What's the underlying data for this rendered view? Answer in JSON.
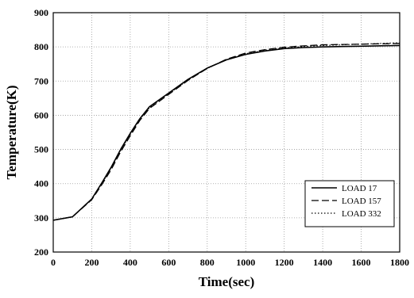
{
  "chart_data": {
    "type": "line",
    "title": "",
    "xlabel": "Time(sec)",
    "ylabel": "Temperature(K)",
    "xlim": [
      0,
      1800
    ],
    "ylim": [
      200,
      900
    ],
    "xticks": [
      0,
      200,
      400,
      600,
      800,
      1000,
      1200,
      1400,
      1600,
      1800
    ],
    "yticks": [
      200,
      300,
      400,
      500,
      600,
      700,
      800,
      900
    ],
    "grid": true,
    "legend_position": "bottom-right",
    "series": [
      {
        "name": "LOAD 17",
        "line_style": "solid",
        "points": [
          [
            0,
            293
          ],
          [
            100,
            303
          ],
          [
            200,
            355
          ],
          [
            250,
            400
          ],
          [
            300,
            447
          ],
          [
            350,
            500
          ],
          [
            400,
            547
          ],
          [
            450,
            590
          ],
          [
            500,
            625
          ],
          [
            600,
            665
          ],
          [
            700,
            705
          ],
          [
            800,
            738
          ],
          [
            900,
            762
          ],
          [
            1000,
            778
          ],
          [
            1100,
            788
          ],
          [
            1200,
            795
          ],
          [
            1300,
            798
          ],
          [
            1400,
            800
          ],
          [
            1500,
            801
          ],
          [
            1600,
            802
          ],
          [
            1700,
            803
          ],
          [
            1800,
            804
          ]
        ]
      },
      {
        "name": "LOAD 157",
        "line_style": "dashed",
        "points": [
          [
            0,
            293
          ],
          [
            100,
            303
          ],
          [
            200,
            353
          ],
          [
            250,
            395
          ],
          [
            300,
            440
          ],
          [
            350,
            493
          ],
          [
            400,
            540
          ],
          [
            450,
            585
          ],
          [
            500,
            620
          ],
          [
            600,
            661
          ],
          [
            700,
            702
          ],
          [
            800,
            737
          ],
          [
            900,
            764
          ],
          [
            1000,
            782
          ],
          [
            1100,
            792
          ],
          [
            1200,
            799
          ],
          [
            1300,
            803
          ],
          [
            1400,
            806
          ],
          [
            1500,
            807
          ],
          [
            1600,
            808
          ],
          [
            1700,
            809
          ],
          [
            1800,
            810
          ]
        ]
      },
      {
        "name": "LOAD 332",
        "line_style": "dotted",
        "points": [
          [
            0,
            293
          ],
          [
            100,
            303
          ],
          [
            200,
            354
          ],
          [
            250,
            398
          ],
          [
            300,
            444
          ],
          [
            350,
            497
          ],
          [
            400,
            544
          ],
          [
            450,
            588
          ],
          [
            500,
            622
          ],
          [
            600,
            663
          ],
          [
            700,
            703
          ],
          [
            800,
            737
          ],
          [
            900,
            763
          ],
          [
            1000,
            780
          ],
          [
            1100,
            790
          ],
          [
            1200,
            797
          ],
          [
            1300,
            801
          ],
          [
            1400,
            804
          ],
          [
            1500,
            806
          ],
          [
            1600,
            808
          ],
          [
            1700,
            810
          ],
          [
            1800,
            812
          ]
        ]
      }
    ]
  }
}
